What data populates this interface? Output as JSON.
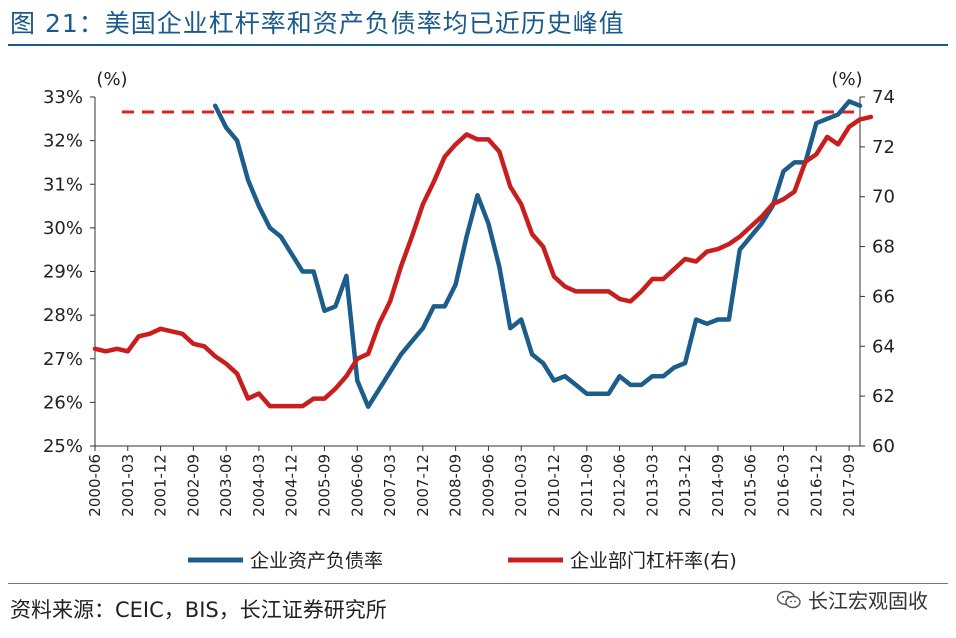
{
  "title": "图 21：美国企业杠杆率和资产负债率均已近历史峰值",
  "source": "资料来源：CEIC，BIS，长江证券研究所",
  "watermark": "长江宏观固收",
  "chart_data": {
    "type": "line",
    "left_unit": "(%)",
    "right_unit": "(%)",
    "ylim_left": [
      25,
      33
    ],
    "ylim_right": [
      60,
      74
    ],
    "y_ticks_left": [
      "25%",
      "26%",
      "27%",
      "28%",
      "29%",
      "30%",
      "31%",
      "32%",
      "33%"
    ],
    "y_ticks_right": [
      "60",
      "62",
      "64",
      "66",
      "68",
      "70",
      "72",
      "74"
    ],
    "x_ticks": [
      "2000-06",
      "2001-03",
      "2001-12",
      "2002-09",
      "2003-06",
      "2004-03",
      "2004-12",
      "2005-09",
      "2006-06",
      "2007-03",
      "2007-12",
      "2008-09",
      "2009-06",
      "2010-03",
      "2010-12",
      "2011-09",
      "2012-06",
      "2013-03",
      "2013-12",
      "2014-09",
      "2015-06",
      "2016-03",
      "2016-12",
      "2017-09"
    ],
    "series": [
      {
        "name": "企业资产负债率",
        "axis": "left",
        "color": "#1c5d8c",
        "start": "2003-03",
        "values": [
          32.8,
          32.3,
          32.0,
          31.1,
          30.5,
          30.0,
          29.8,
          29.4,
          29.0,
          29.0,
          28.1,
          28.2,
          28.9,
          26.5,
          25.9,
          26.3,
          26.7,
          27.1,
          27.4,
          27.7,
          28.2,
          28.2,
          28.7,
          29.8,
          30.75,
          30.1,
          29.1,
          27.7,
          27.9,
          27.1,
          26.9,
          26.5,
          26.6,
          26.4,
          26.2,
          26.2,
          26.2,
          26.6,
          26.4,
          26.4,
          26.6,
          26.6,
          26.8,
          26.9,
          27.9,
          27.8,
          27.9,
          27.9,
          29.5,
          29.8,
          30.1,
          30.5,
          31.3,
          31.5,
          31.5,
          32.4,
          32.5,
          32.6,
          32.9,
          32.8
        ]
      },
      {
        "name": "企业部门杠杆率(右)",
        "axis": "right",
        "color": "#c81e1e",
        "start": "2000-06",
        "values": [
          63.9,
          63.8,
          63.9,
          63.8,
          64.4,
          64.5,
          64.7,
          64.6,
          64.5,
          64.1,
          64.0,
          63.6,
          63.3,
          62.9,
          61.9,
          62.1,
          61.6,
          61.6,
          61.6,
          61.6,
          61.9,
          61.9,
          62.3,
          62.8,
          63.5,
          63.7,
          64.9,
          65.8,
          67.2,
          68.4,
          69.7,
          70.6,
          71.6,
          72.1,
          72.5,
          72.3,
          72.3,
          71.8,
          70.4,
          69.7,
          68.5,
          68.0,
          66.8,
          66.4,
          66.2,
          66.2,
          66.2,
          66.2,
          65.9,
          65.8,
          66.2,
          66.7,
          66.7,
          67.1,
          67.5,
          67.4,
          67.8,
          67.9,
          68.1,
          68.4,
          68.8,
          69.2,
          69.7,
          69.9,
          70.2,
          71.4,
          71.7,
          72.4,
          72.1,
          72.8,
          73.1,
          73.2
        ],
        "peak_marker": {
          "style": "dashed",
          "color": "#e02020",
          "value_right": 73.4
        }
      }
    ],
    "x_range": [
      "2000-06",
      "2017-12"
    ],
    "legend_position": "bottom",
    "grid": false
  }
}
